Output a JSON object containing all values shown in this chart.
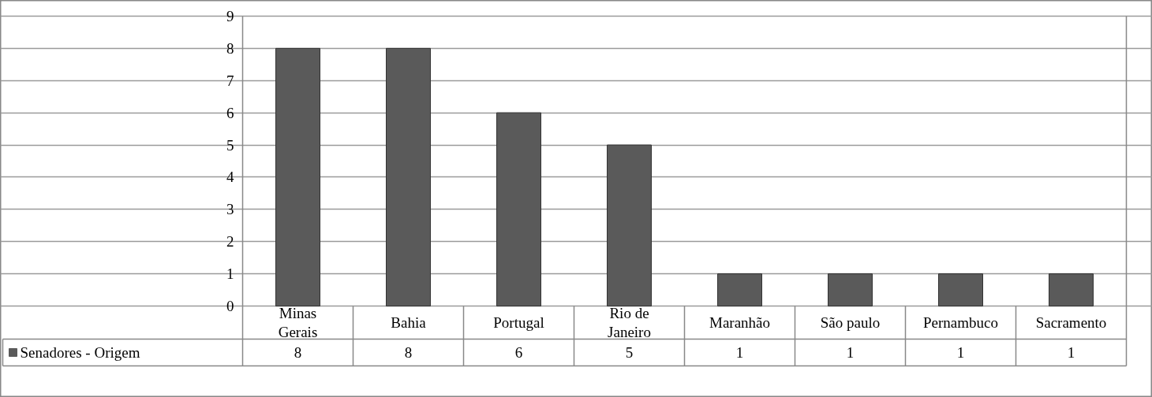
{
  "chart_data": {
    "type": "bar",
    "categories": [
      "Minas Gerais",
      "Bahia",
      "Portugal",
      "Rio de Janeiro",
      "Maranhão",
      "São paulo",
      "Pernambuco",
      "Sacramento"
    ],
    "series": [
      {
        "name": "Senadores - Origem",
        "color": "#5a5a5a",
        "values": [
          8,
          8,
          6,
          5,
          1,
          1,
          1,
          1
        ]
      }
    ],
    "ylim": [
      0,
      9
    ],
    "yticks": [
      0,
      1,
      2,
      3,
      4,
      5,
      6,
      7,
      8,
      9
    ],
    "grid": "y",
    "legend": "bottom left",
    "data_labels": true
  }
}
